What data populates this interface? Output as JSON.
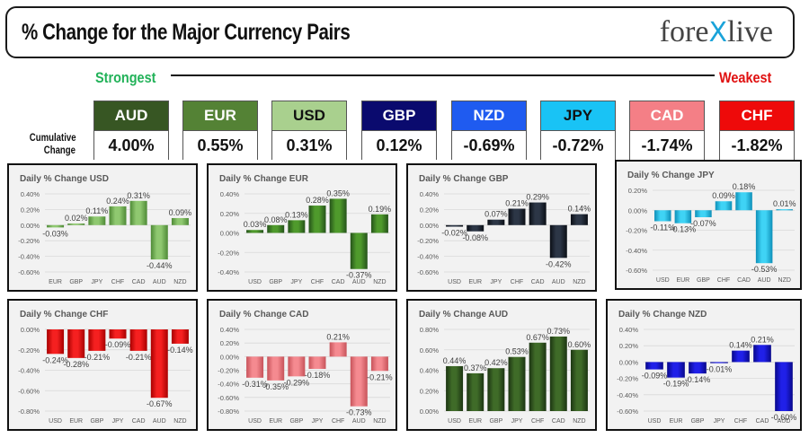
{
  "header": {
    "title": "% Change for the Major Currency Pairs",
    "logo_left": "fore",
    "logo_mark": "X",
    "logo_right": "live"
  },
  "scale": {
    "strongest_label": "Strongest",
    "weakest_label": "Weakest",
    "cumulative_label_line1": "Cumulative",
    "cumulative_label_line2": "Change"
  },
  "currencies": [
    {
      "code": "AUD",
      "value": "4.00%",
      "color": "#375623",
      "text_color": "#ffffff"
    },
    {
      "code": "EUR",
      "value": "0.55%",
      "color": "#548235",
      "text_color": "#ffffff"
    },
    {
      "code": "USD",
      "value": "0.31%",
      "color": "#a9d08e",
      "text_color": "#111111"
    },
    {
      "code": "GBP",
      "value": "0.12%",
      "color": "#0a0a6e",
      "text_color": "#ffffff"
    },
    {
      "code": "NZD",
      "value": "-0.69%",
      "color": "#1f5bf0",
      "text_color": "#ffffff"
    },
    {
      "code": "JPY",
      "value": "-0.72%",
      "color": "#19c3f5",
      "text_color": "#111111"
    },
    {
      "code": "CAD",
      "value": "-1.74%",
      "color": "#f47f86",
      "text_color": "#ffffff"
    },
    {
      "code": "CHF",
      "value": "-1.82%",
      "color": "#ee0a0a",
      "text_color": "#ffffff"
    }
  ],
  "chart_data": [
    {
      "type": "bar",
      "title": "Daily % Change USD",
      "categories": [
        "EUR",
        "GBP",
        "JPY",
        "CHF",
        "CAD",
        "AUD",
        "NZD"
      ],
      "values": [
        -0.03,
        0.02,
        0.11,
        0.24,
        0.31,
        -0.44,
        0.09
      ],
      "ylim": [
        -0.6,
        0.4
      ],
      "yticks": [
        0.4,
        0.2,
        0.0,
        -0.2,
        -0.4,
        -0.6
      ],
      "ytick_labels": [
        "0.40%",
        "0.20%",
        "0.00%",
        "-0.20%",
        "-0.40%",
        "-0.60%"
      ],
      "data_labels": [
        "-0.03%",
        "0.02%",
        "0.11%",
        "0.24%",
        "0.31%",
        "-0.44%",
        "0.09%"
      ],
      "bar_color": "#8fc870",
      "bar_dark": "#4e8a36",
      "grid": true,
      "xlabel": "",
      "ylabel": ""
    },
    {
      "type": "bar",
      "title": "Daily % Change EUR",
      "categories": [
        "USD",
        "GBP",
        "JPY",
        "CHF",
        "CAD",
        "AUD",
        "NZD"
      ],
      "values": [
        0.03,
        0.08,
        0.13,
        0.28,
        0.35,
        -0.37,
        0.19
      ],
      "ylim": [
        -0.4,
        0.4
      ],
      "yticks": [
        0.4,
        0.2,
        0.0,
        -0.2,
        -0.4
      ],
      "ytick_labels": [
        "0.40%",
        "0.20%",
        "0.00%",
        "-0.20%",
        "-0.40%"
      ],
      "data_labels": [
        "0.03%",
        "0.08%",
        "0.13%",
        "0.28%",
        "0.35%",
        "-0.37%",
        "0.19%"
      ],
      "bar_color": "#4f9a2c",
      "bar_dark": "#25531a",
      "grid": true,
      "xlabel": "",
      "ylabel": ""
    },
    {
      "type": "bar",
      "title": "Daily % Change GBP",
      "categories": [
        "USD",
        "EUR",
        "JPY",
        "CHF",
        "CAD",
        "AUD",
        "NZD"
      ],
      "values": [
        -0.02,
        -0.08,
        0.07,
        0.21,
        0.29,
        -0.42,
        0.14
      ],
      "ylim": [
        -0.6,
        0.4
      ],
      "yticks": [
        0.4,
        0.2,
        0.0,
        -0.2,
        -0.4,
        -0.6
      ],
      "ytick_labels": [
        "0.40%",
        "0.20%",
        "0.00%",
        "-0.20%",
        "-0.40%",
        "-0.60%"
      ],
      "data_labels": [
        "-0.02%",
        "-0.08%",
        "0.07%",
        "0.21%",
        "0.29%",
        "-0.42%",
        "0.14%"
      ],
      "bar_color": "#2c3646",
      "bar_dark": "#0b0f16",
      "grid": true,
      "xlabel": "",
      "ylabel": ""
    },
    {
      "type": "bar",
      "title": "Daily % Change JPY",
      "categories": [
        "USD",
        "EUR",
        "GBP",
        "CHF",
        "CAD",
        "AUD",
        "NZD"
      ],
      "values": [
        -0.11,
        -0.13,
        -0.07,
        0.09,
        0.18,
        -0.53,
        0.01
      ],
      "ylim": [
        -0.6,
        0.2
      ],
      "yticks": [
        0.2,
        0.0,
        -0.2,
        -0.4,
        -0.6
      ],
      "ytick_labels": [
        "0.20%",
        "0.00%",
        "-0.20%",
        "-0.40%",
        "-0.60%"
      ],
      "data_labels": [
        "-0.11%",
        "-0.13%",
        "-0.07%",
        "0.09%",
        "0.18%",
        "-0.53%",
        "0.01%"
      ],
      "bar_color": "#3fd3f5",
      "bar_dark": "#0e8fb8",
      "grid": true,
      "xlabel": "",
      "ylabel": ""
    },
    {
      "type": "bar",
      "title": "Daily % Change CHF",
      "categories": [
        "USD",
        "EUR",
        "GBP",
        "JPY",
        "CAD",
        "AUD",
        "NZD"
      ],
      "values": [
        -0.24,
        -0.28,
        -0.21,
        -0.09,
        -0.21,
        -0.67,
        -0.14
      ],
      "ylim": [
        -0.8,
        0.0
      ],
      "yticks": [
        0.0,
        -0.2,
        -0.4,
        -0.6,
        -0.8
      ],
      "ytick_labels": [
        "0.00%",
        "-0.20%",
        "-0.40%",
        "-0.60%",
        "-0.80%"
      ],
      "data_labels": [
        "-0.24%",
        "-0.28%",
        "-0.21%",
        "-0.09%",
        "-0.21%",
        "-0.67%",
        "-0.14%"
      ],
      "bar_color": "#f52020",
      "bar_dark": "#a80000",
      "grid": true,
      "xlabel": "",
      "ylabel": ""
    },
    {
      "type": "bar",
      "title": "Daily % Change CAD",
      "categories": [
        "USD",
        "EUR",
        "GBP",
        "JPY",
        "CHF",
        "AUD",
        "NZD"
      ],
      "values": [
        -0.31,
        -0.35,
        -0.29,
        -0.18,
        0.21,
        -0.73,
        -0.21
      ],
      "ylim": [
        -0.8,
        0.4
      ],
      "yticks": [
        0.4,
        0.2,
        0.0,
        -0.2,
        -0.4,
        -0.6,
        -0.8
      ],
      "ytick_labels": [
        "0.40%",
        "0.20%",
        "0.00%",
        "-0.20%",
        "-0.40%",
        "-0.60%",
        "-0.80%"
      ],
      "data_labels": [
        "-0.31%",
        "-0.35%",
        "-0.29%",
        "-0.18%",
        "0.21%",
        "-0.73%",
        "-0.21%"
      ],
      "bar_color": "#f58a90",
      "bar_dark": "#c7535a",
      "grid": true,
      "xlabel": "",
      "ylabel": ""
    },
    {
      "type": "bar",
      "title": "Daily % Change AUD",
      "categories": [
        "USD",
        "EUR",
        "GBP",
        "JPY",
        "CHF",
        "CAD",
        "NZD"
      ],
      "values": [
        0.44,
        0.37,
        0.42,
        0.53,
        0.67,
        0.73,
        0.6
      ],
      "ylim": [
        0.0,
        0.8
      ],
      "yticks": [
        0.8,
        0.6,
        0.4,
        0.2,
        0.0
      ],
      "ytick_labels": [
        "0.80%",
        "0.60%",
        "0.40%",
        "0.20%",
        "0.00%"
      ],
      "data_labels": [
        "0.44%",
        "0.37%",
        "0.42%",
        "0.53%",
        "0.67%",
        "0.73%",
        "0.60%"
      ],
      "bar_color": "#3f6b28",
      "bar_dark": "#1c3512",
      "grid": true,
      "xlabel": "",
      "ylabel": ""
    },
    {
      "type": "bar",
      "title": "Daily % Change NZD",
      "categories": [
        "USD",
        "EUR",
        "GBP",
        "JPY",
        "CHF",
        "CAD",
        "AUD"
      ],
      "values": [
        -0.09,
        -0.19,
        -0.14,
        -0.01,
        0.14,
        0.21,
        -0.6
      ],
      "ylim": [
        -0.6,
        0.4
      ],
      "yticks": [
        0.4,
        0.2,
        0.0,
        -0.2,
        -0.4,
        -0.6
      ],
      "ytick_labels": [
        "0.40%",
        "0.20%",
        "0.00%",
        "-0.20%",
        "-0.40%",
        "-0.60%"
      ],
      "data_labels": [
        "-0.09%",
        "-0.19%",
        "-0.14%",
        "-0.01%",
        "0.14%",
        "0.21%",
        "-0.60%"
      ],
      "bar_color": "#2020e8",
      "bar_dark": "#08088a",
      "grid": true,
      "xlabel": "",
      "ylabel": ""
    }
  ]
}
